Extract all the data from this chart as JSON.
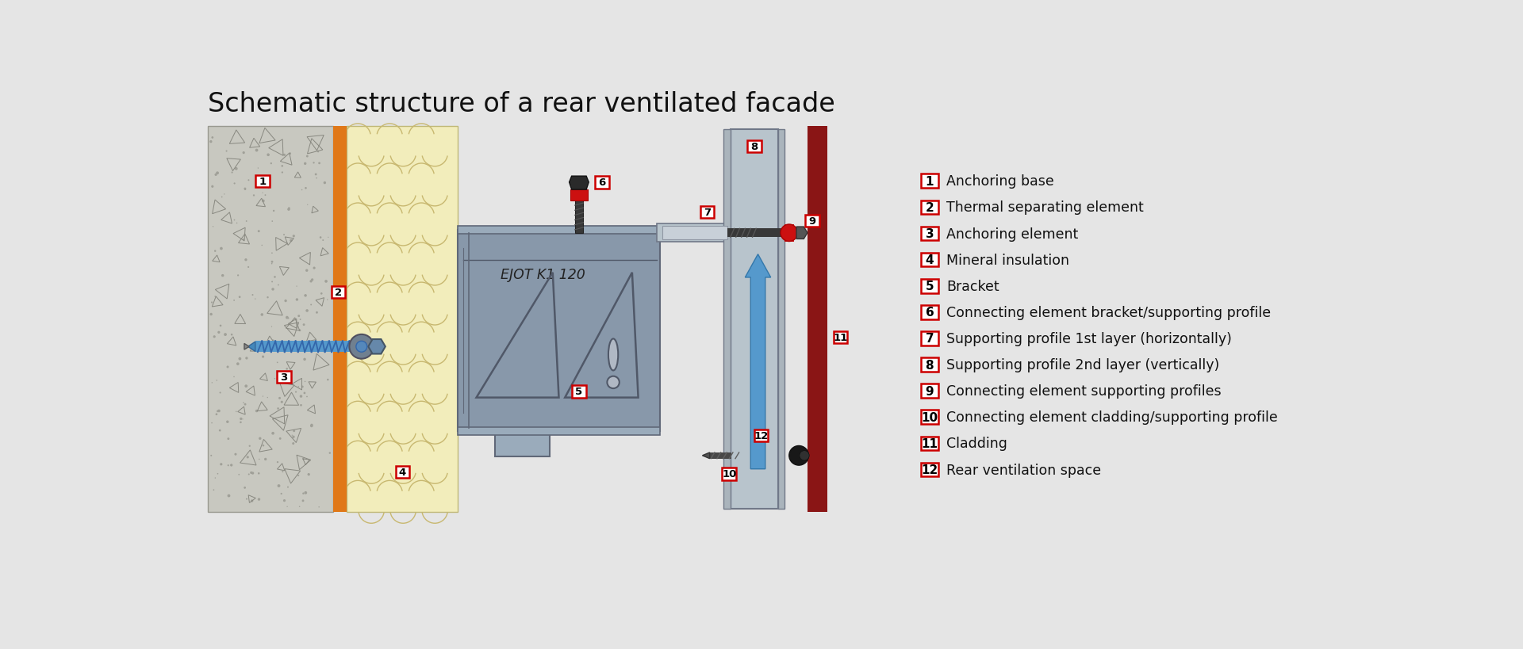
{
  "title": "Schematic structure of a rear ventilated facade",
  "background_color": "#e5e5e5",
  "legend_items": [
    {
      "num": "1",
      "text": "Anchoring base"
    },
    {
      "num": "2",
      "text": "Thermal separating element"
    },
    {
      "num": "3",
      "text": "Anchoring element"
    },
    {
      "num": "4",
      "text": "Mineral insulation"
    },
    {
      "num": "5",
      "text": "Bracket"
    },
    {
      "num": "6",
      "text": "Connecting element bracket/supporting profile"
    },
    {
      "num": "7",
      "text": "Supporting profile 1st layer (horizontally)"
    },
    {
      "num": "8",
      "text": "Supporting profile 2nd layer (vertically)"
    },
    {
      "num": "9",
      "text": "Connecting element supporting profiles"
    },
    {
      "num": "10",
      "text": "Connecting element cladding/supporting profile"
    },
    {
      "num": "11",
      "text": "Cladding"
    },
    {
      "num": "12",
      "text": "Rear ventilation space"
    }
  ],
  "label_box_color": "#cc0000",
  "label_text_color": "#000000",
  "label_box_fill": "#ffffff",
  "concrete_color": "#c8c8c0",
  "insulation_color": "#f2edbb",
  "bracket_color": "#8898aa",
  "bracket_edge": "#606878",
  "orange_strip_color": "#e07818",
  "cladding_color": "#8a1515",
  "profile_color": "#b8c4cc",
  "profile_edge": "#707888",
  "screw_color": "#404040",
  "red_connector_color": "#cc1010",
  "blue_arrow_color": "#5599cc",
  "title_fontsize": 24
}
